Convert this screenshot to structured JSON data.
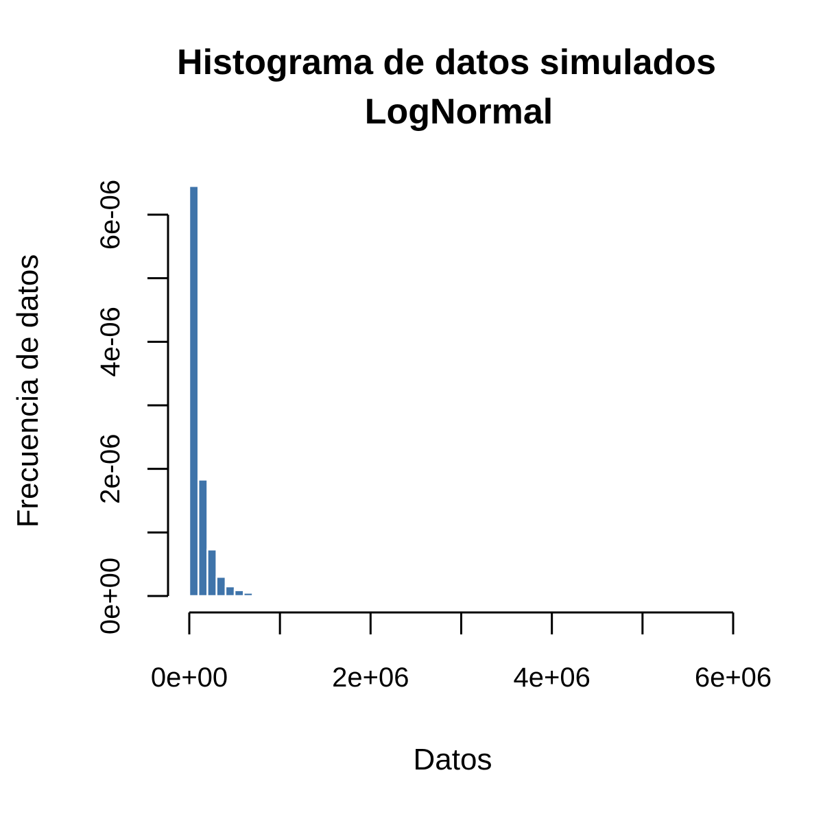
{
  "chart_data": {
    "type": "bar",
    "title_line1": "Histograma de datos simulados",
    "title_line2": "LogNormal",
    "xlabel": "Datos",
    "ylabel": "Frecuencia de datos",
    "xlim": [
      0,
      6000000
    ],
    "ylim": [
      0,
      6e-06
    ],
    "x_ticks": [
      0,
      1000000,
      2000000,
      3000000,
      4000000,
      5000000,
      6000000
    ],
    "x_tick_labels": [
      "0e+00",
      "",
      "2e+06",
      "",
      "4e+06",
      "",
      "6e+06"
    ],
    "y_ticks": [
      0,
      1e-06,
      2e-06,
      3e-06,
      4e-06,
      5e-06,
      6e-06
    ],
    "y_tick_labels": [
      "0e+00",
      "",
      "2e-06",
      "",
      "4e-06",
      "",
      "6e-06"
    ],
    "bin_width": 100000,
    "bins": [
      {
        "x0": 0,
        "x1": 100000,
        "density": 6.45e-06
      },
      {
        "x0": 100000,
        "x1": 200000,
        "density": 1.83e-06
      },
      {
        "x0": 200000,
        "x1": 300000,
        "density": 7.3e-07
      },
      {
        "x0": 300000,
        "x1": 400000,
        "density": 3e-07
      },
      {
        "x0": 400000,
        "x1": 500000,
        "density": 1.5e-07
      },
      {
        "x0": 500000,
        "x1": 600000,
        "density": 9e-08
      },
      {
        "x0": 600000,
        "x1": 700000,
        "density": 5e-08
      },
      {
        "x0": 700000,
        "x1": 800000,
        "density": 2e-08
      }
    ],
    "bar_color": "#3f74aa",
    "bar_border": "#ffffff",
    "grid": false,
    "legend": "none"
  }
}
